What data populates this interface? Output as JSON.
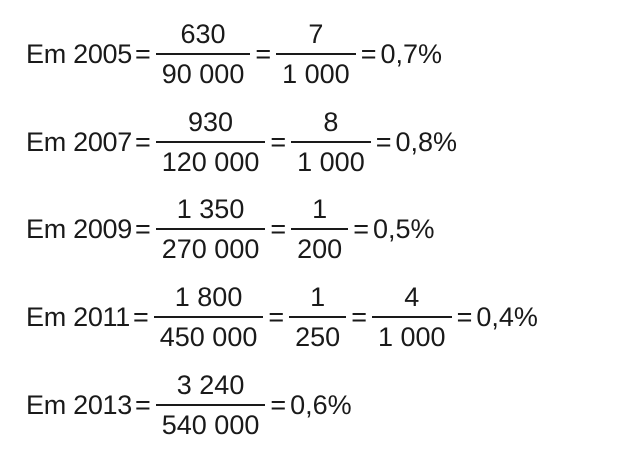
{
  "equations": [
    {
      "label": "Em 2005",
      "fractions": [
        {
          "numerator": "630",
          "denominator": "90 000"
        },
        {
          "numerator": "7",
          "denominator": "1 000"
        }
      ],
      "result": "0,7%"
    },
    {
      "label": "Em 2007",
      "fractions": [
        {
          "numerator": "930",
          "denominator": "120 000"
        },
        {
          "numerator": "8",
          "denominator": "1 000"
        }
      ],
      "result": "0,8%"
    },
    {
      "label": "Em 2009",
      "fractions": [
        {
          "numerator": "1 350",
          "denominator": "270 000"
        },
        {
          "numerator": "1",
          "denominator": "200"
        }
      ],
      "result": "0,5%"
    },
    {
      "label": "Em 2011",
      "fractions": [
        {
          "numerator": "1 800",
          "denominator": "450 000"
        },
        {
          "numerator": "1",
          "denominator": "250"
        },
        {
          "numerator": "4",
          "denominator": "1 000"
        }
      ],
      "result": "0,4%"
    },
    {
      "label": "Em 2013",
      "fractions": [
        {
          "numerator": "3 240",
          "denominator": "540 000"
        }
      ],
      "result": "0,6%"
    }
  ],
  "symbols": {
    "equals": "="
  }
}
